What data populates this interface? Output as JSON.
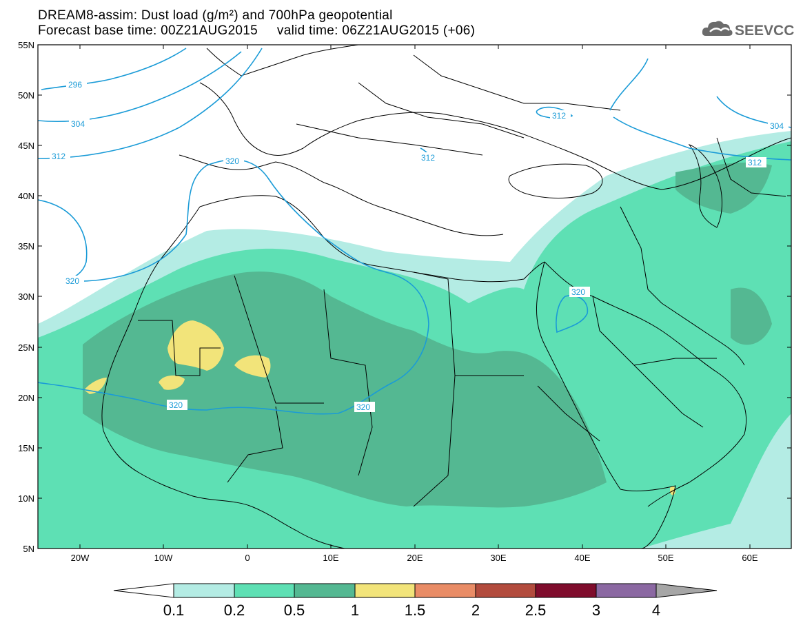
{
  "header": {
    "title_line1": "DREAM8-assim: Dust load (g/m²) and 700hPa geopotential",
    "title_line2": "Forecast base time: 00Z21AUG2015     valid time: 06Z21AUG2015 (+06)"
  },
  "logo": {
    "text": "SEEVCCC",
    "icon": "cloud-icon"
  },
  "axes": {
    "lat_labels": [
      "55N",
      "50N",
      "45N",
      "40N",
      "35N",
      "30N",
      "25N",
      "20N",
      "15N",
      "10N",
      "5N"
    ],
    "lon_labels": [
      "20W",
      "10W",
      "0",
      "10E",
      "20E",
      "30E",
      "40E",
      "50E",
      "60E"
    ]
  },
  "contours": {
    "color": "#1a9bd7",
    "labels": [
      "296",
      "304",
      "312",
      "320",
      "312",
      "312",
      "320",
      "320",
      "320",
      "320",
      "304",
      "312"
    ]
  },
  "colorbar": {
    "colors": [
      "#b4ece4",
      "#5ee0b4",
      "#54b892",
      "#f2e47a",
      "#e98c66",
      "#b24b3d",
      "#7f0c2c",
      "#8b68a2",
      "#a6a6a6"
    ],
    "labels": [
      "0.1",
      "0.2",
      "0.5",
      "1",
      "1.5",
      "2",
      "2.5",
      "3",
      "4"
    ]
  }
}
